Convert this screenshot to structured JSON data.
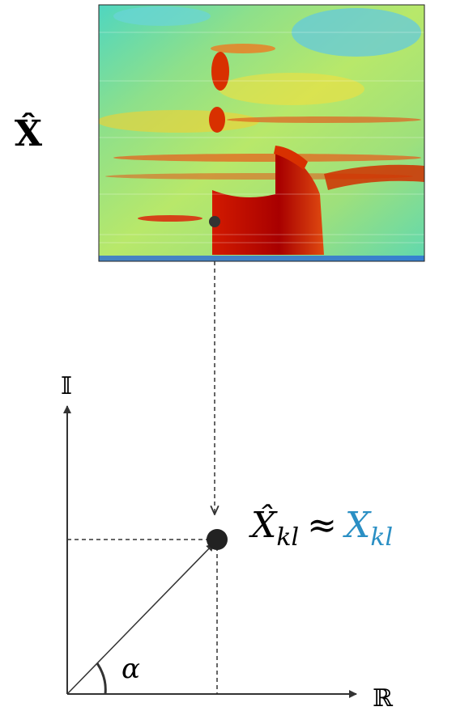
{
  "labels": {
    "matrix": "X̂",
    "imag_axis": "𝕀",
    "real_axis": "ℝ",
    "angle": "α"
  },
  "equation": {
    "lhs": "X̂",
    "lhs_sub": "kl",
    "approx": "≈",
    "rhs": "X",
    "rhs_sub": "kl"
  }
}
